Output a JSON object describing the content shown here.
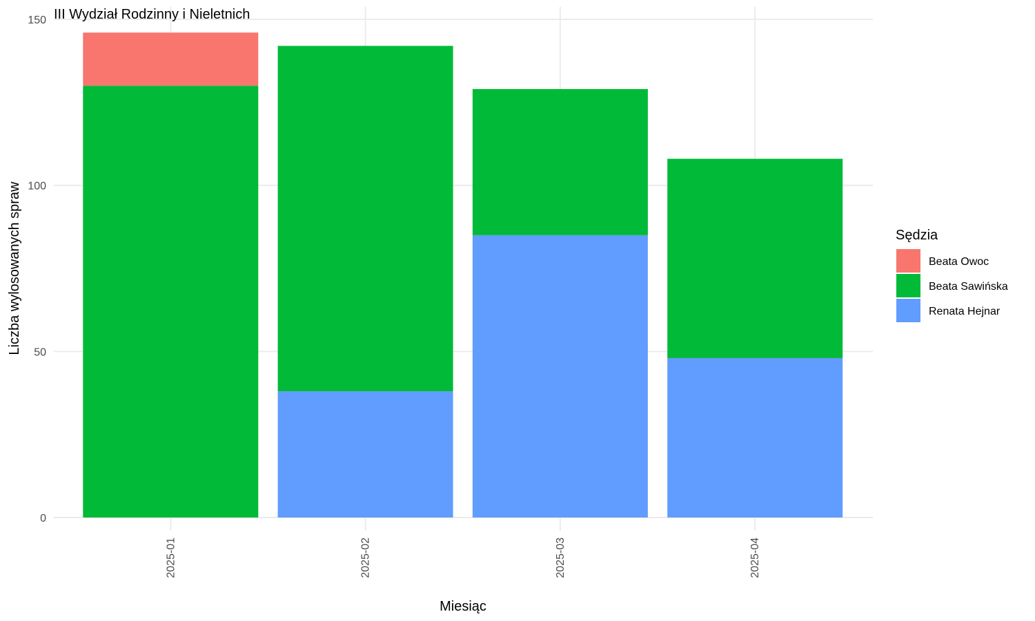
{
  "chart_data": {
    "type": "bar",
    "stacked": true,
    "title": "III Wydział Rodzinny i Nieletnich",
    "xlabel": "Miesiąc",
    "ylabel": "Liczba wylosowanych spraw",
    "categories": [
      "2025-01",
      "2025-02",
      "2025-03",
      "2025-04"
    ],
    "ylim": [
      0,
      150
    ],
    "yticks": [
      0,
      50,
      100,
      150
    ],
    "grid": true,
    "legend": {
      "title": "Sędzia",
      "position": "right"
    },
    "series": [
      {
        "name": "Beata Owoc",
        "color": "#F8766D",
        "values": [
          16,
          0,
          0,
          0
        ]
      },
      {
        "name": "Beata Sawińska",
        "color": "#00BA38",
        "values": [
          130,
          104,
          44,
          60
        ]
      },
      {
        "name": "Renata Hejnar",
        "color": "#619CFF",
        "values": [
          0,
          38,
          85,
          48
        ]
      }
    ],
    "stack_order_bottom_to_top": [
      "Renata Hejnar",
      "Beata Sawińska",
      "Beata Owoc"
    ]
  }
}
